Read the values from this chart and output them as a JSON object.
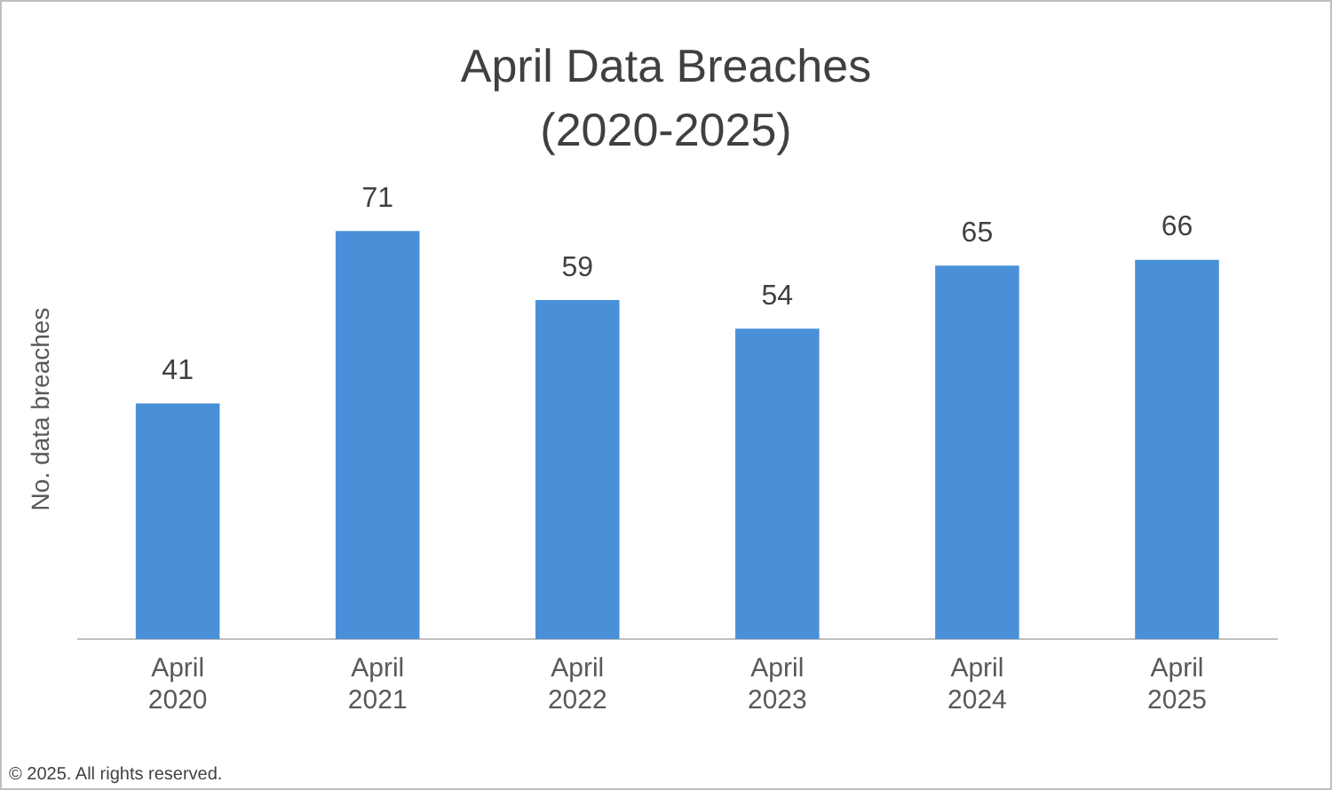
{
  "chart_data": {
    "type": "bar",
    "title": "April Data Breaches (2020-2025)",
    "ylabel": "No. data breaches",
    "categories": [
      "April 2020",
      "April 2021",
      "April 2022",
      "April 2023",
      "April 2024",
      "April 2025"
    ],
    "values": [
      41,
      71,
      59,
      54,
      65,
      66
    ],
    "color": "#4a90d9",
    "data_labels": true,
    "grid": false,
    "legend": false,
    "tick_labels": "x",
    "annotations": [
      "© 2025. All rights reserved."
    ]
  }
}
